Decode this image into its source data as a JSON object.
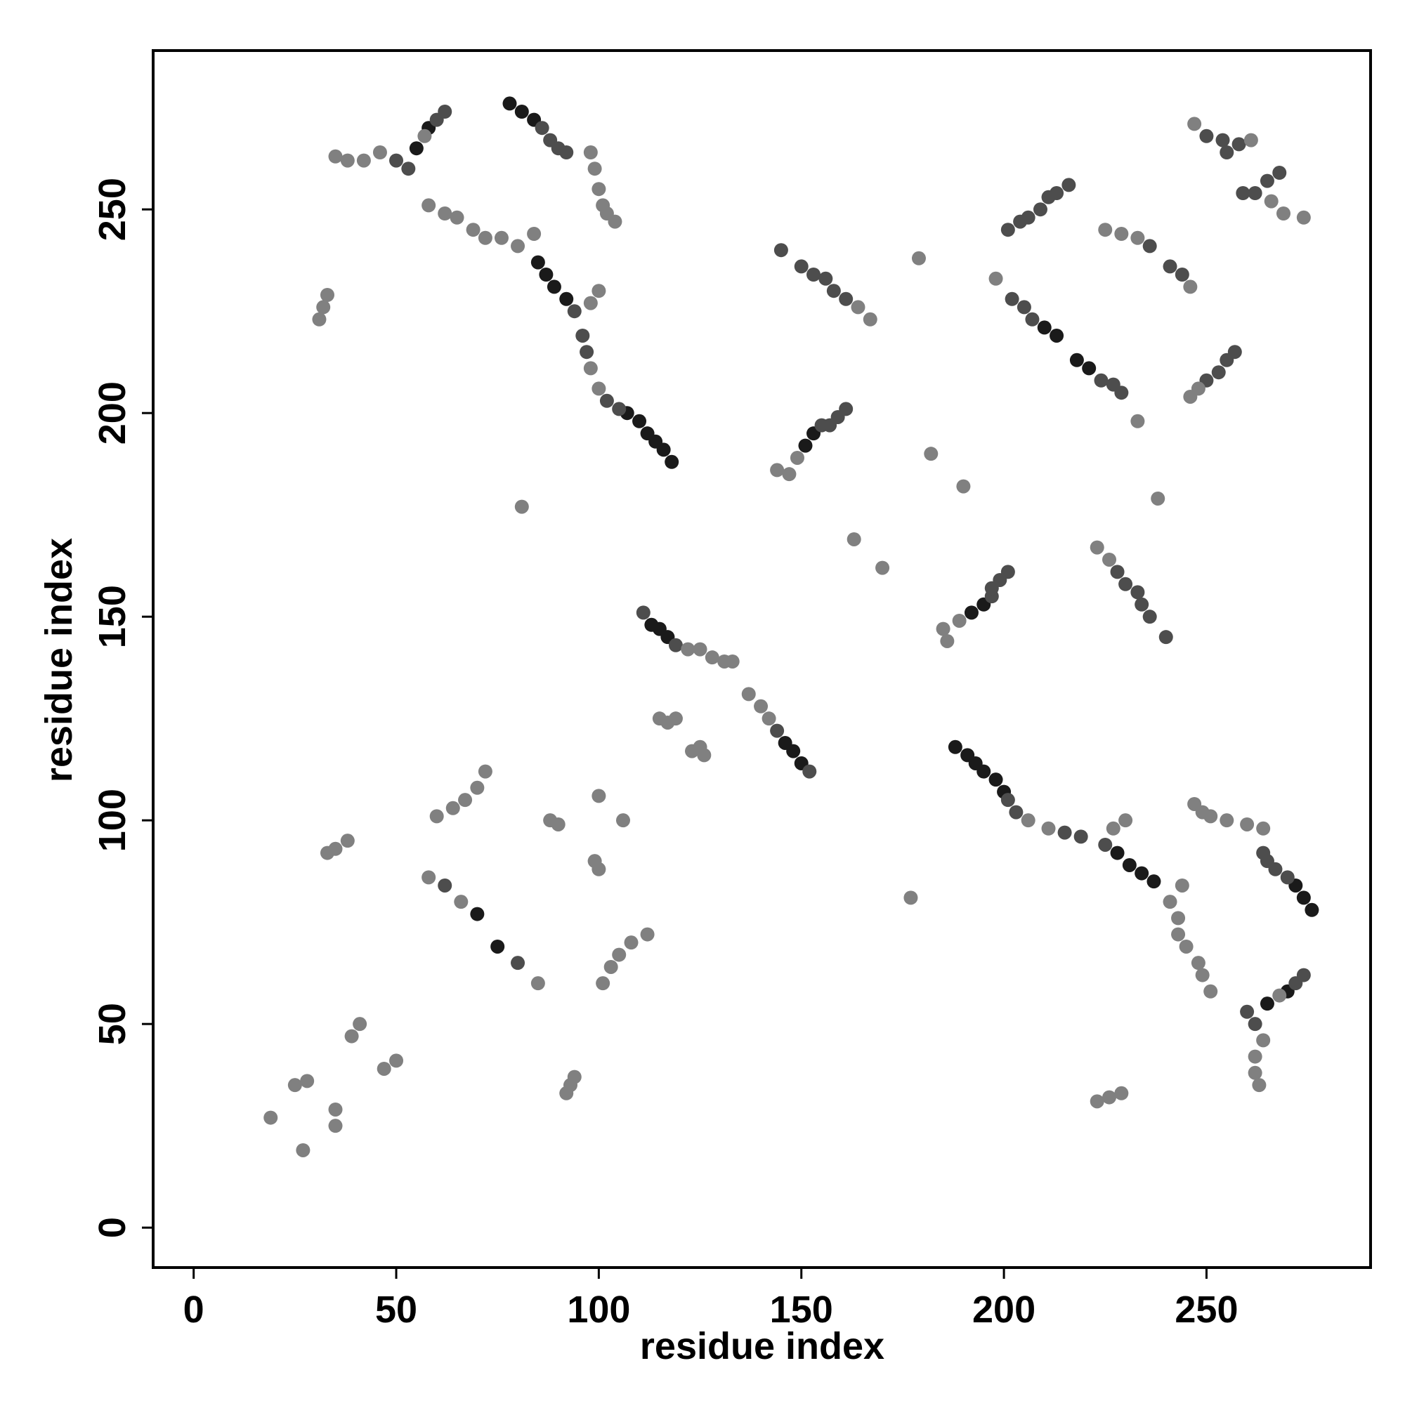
{
  "chart_data": {
    "type": "scatter",
    "x_label": "residue index",
    "y_label": "residue index",
    "xlim": [
      -10,
      290.5
    ],
    "ylim": [
      -9.8,
      289
    ],
    "xticks": [
      0,
      50,
      100,
      150,
      200,
      250
    ],
    "yticks": [
      0,
      50,
      100,
      150,
      200,
      250
    ],
    "series": [
      {
        "color": "#1a1a1a",
        "x": [
          55,
          58,
          107,
          110,
          112,
          114,
          116,
          118,
          85,
          87,
          89,
          92,
          78,
          81,
          84,
          113,
          115,
          117,
          146,
          148,
          150,
          151,
          153,
          210,
          213,
          218,
          221,
          70,
          75,
          200,
          198,
          195,
          193,
          191,
          188,
          237,
          234,
          231,
          228,
          276,
          274,
          272,
          265,
          270,
          192,
          195
        ],
        "y": [
          265,
          270,
          200,
          198,
          195,
          193,
          191,
          188,
          237,
          234,
          231,
          228,
          276,
          274,
          272,
          148,
          147,
          145,
          119,
          117,
          114,
          192,
          195,
          221,
          219,
          213,
          211,
          77,
          69,
          107,
          110,
          112,
          114,
          116,
          118,
          85,
          87,
          89,
          92,
          78,
          81,
          84,
          55,
          58,
          151,
          153
        ]
      },
      {
        "color": "#4d4d4d",
        "x": [
          50,
          53,
          60,
          62,
          86,
          88,
          90,
          92,
          94,
          96,
          97,
          102,
          105,
          145,
          150,
          153,
          156,
          158,
          161,
          201,
          204,
          206,
          209,
          211,
          213,
          216,
          202,
          205,
          207,
          224,
          227,
          229,
          250,
          254,
          258,
          255,
          259,
          262,
          265,
          268,
          250,
          253,
          255,
          257,
          111,
          119,
          144,
          152,
          62,
          80,
          155,
          157,
          159,
          161,
          236,
          241,
          244,
          262,
          260,
          272,
          274,
          270,
          267,
          265,
          264,
          225,
          219,
          215,
          203,
          201,
          240,
          236,
          234,
          233,
          230,
          228,
          197,
          197,
          199,
          201
        ],
        "y": [
          262,
          260,
          272,
          274,
          270,
          267,
          265,
          264,
          225,
          219,
          215,
          203,
          201,
          240,
          236,
          234,
          233,
          230,
          228,
          245,
          247,
          248,
          250,
          253,
          254,
          256,
          228,
          226,
          223,
          208,
          207,
          205,
          268,
          267,
          266,
          264,
          254,
          254,
          257,
          259,
          208,
          210,
          213,
          215,
          151,
          143,
          122,
          112,
          84,
          65,
          197,
          197,
          199,
          201,
          241,
          236,
          234,
          50,
          53,
          60,
          62,
          86,
          88,
          90,
          92,
          94,
          96,
          97,
          102,
          105,
          145,
          150,
          153,
          156,
          158,
          161,
          155,
          157,
          159,
          161
        ]
      },
      {
        "color": "#808080",
        "x": [
          35,
          38,
          42,
          46,
          57,
          58,
          62,
          65,
          69,
          72,
          76,
          80,
          84,
          98,
          100,
          98,
          99,
          100,
          101,
          102,
          104,
          31,
          32,
          33,
          100,
          98,
          81,
          122,
          125,
          128,
          131,
          133,
          137,
          140,
          142,
          115,
          117,
          119,
          125,
          126,
          123,
          164,
          167,
          144,
          147,
          149,
          163,
          170,
          182,
          190,
          179,
          238,
          198,
          233,
          225,
          229,
          233,
          246,
          247,
          261,
          266,
          269,
          274,
          246,
          248,
          19,
          27,
          25,
          28,
          35,
          35,
          39,
          41,
          47,
          50,
          33,
          35,
          38,
          92,
          93,
          94,
          60,
          64,
          67,
          70,
          72,
          101,
          103,
          105,
          108,
          112,
          88,
          90,
          100,
          99,
          100,
          106,
          58,
          66,
          85,
          177,
          263,
          262,
          262,
          264,
          268,
          251,
          249,
          248,
          245,
          243,
          243,
          241,
          244,
          211,
          206,
          264,
          260,
          255,
          251,
          249,
          247,
          223,
          226,
          229,
          230,
          227,
          226,
          223,
          186,
          185,
          189
        ],
        "y": [
          263,
          262,
          262,
          264,
          268,
          251,
          249,
          248,
          245,
          243,
          243,
          241,
          244,
          211,
          206,
          264,
          260,
          255,
          251,
          249,
          247,
          223,
          226,
          229,
          230,
          227,
          177,
          142,
          142,
          140,
          139,
          139,
          131,
          128,
          125,
          125,
          124,
          125,
          118,
          116,
          117,
          226,
          223,
          186,
          185,
          189,
          169,
          162,
          190,
          182,
          238,
          179,
          233,
          198,
          245,
          244,
          243,
          231,
          271,
          267,
          252,
          249,
          248,
          204,
          206,
          27,
          19,
          35,
          36,
          29,
          25,
          47,
          50,
          39,
          41,
          92,
          93,
          95,
          33,
          35,
          37,
          101,
          103,
          105,
          108,
          112,
          60,
          64,
          67,
          70,
          72,
          100,
          99,
          88,
          90,
          106,
          100,
          86,
          80,
          60,
          81,
          35,
          38,
          42,
          46,
          57,
          58,
          62,
          65,
          69,
          72,
          76,
          80,
          84,
          98,
          100,
          98,
          99,
          100,
          101,
          102,
          104,
          31,
          32,
          33,
          100,
          98,
          164,
          167,
          144,
          147,
          149
        ]
      }
    ]
  }
}
